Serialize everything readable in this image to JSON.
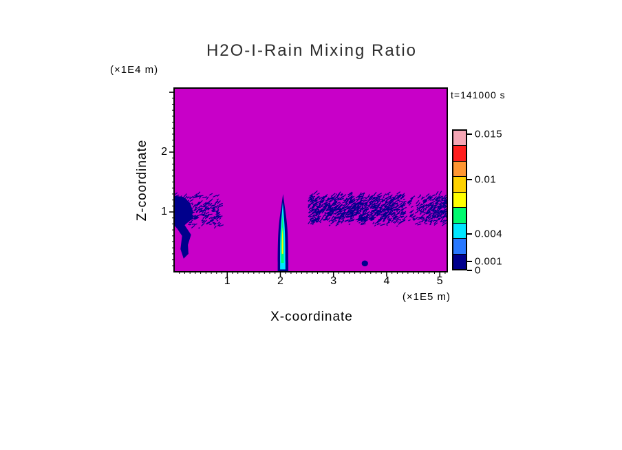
{
  "chart_data": {
    "type": "heatmap",
    "title": "H2O-I-Rain Mixing Ratio",
    "xlabel": "X-coordinate",
    "ylabel": "Z-coordinate",
    "x_unit": "(×1E5 m)",
    "z_unit": "(×1E4 m)",
    "timestamp": "t=141000 s",
    "xlim": [
      0,
      5.14
    ],
    "zlim": [
      0,
      3.07
    ],
    "x_ticks": [
      1,
      2,
      3,
      4,
      5
    ],
    "z_ticks": [
      1,
      2
    ],
    "minor_tick_step": 0.1,
    "background_value_color": "#C800C8",
    "feature_color": "#00008C",
    "colorbar": {
      "range": [
        0,
        0.0155
      ],
      "labels": [
        "0.015",
        "0.01",
        "0.004",
        "0.001",
        "0"
      ],
      "label_values": [
        0.015,
        0.01,
        0.004,
        0.001,
        0
      ],
      "segment_colors_bottom_to_top": [
        "#00008C",
        "#2878FF",
        "#00E6FF",
        "#00FA6E",
        "#FFFF00",
        "#FFD200",
        "#FF9632",
        "#FF1E1E",
        "#F5A5B4"
      ]
    },
    "features": [
      {
        "type": "speckle",
        "name": "left-cloud-speckle",
        "x": [
          0.0,
          0.85
        ],
        "z": [
          0.72,
          1.3
        ],
        "count": 420,
        "len": [
          2,
          7
        ],
        "angle": -30,
        "color": "#00008C"
      },
      {
        "type": "polygon",
        "name": "left-cloud-core",
        "color": "#00008C",
        "points": [
          [
            0,
            1.27
          ],
          [
            0.18,
            1.25
          ],
          [
            0.3,
            1.15
          ],
          [
            0.36,
            1.0
          ],
          [
            0.3,
            0.86
          ],
          [
            0.2,
            0.78
          ],
          [
            0.32,
            0.62
          ],
          [
            0.26,
            0.45
          ],
          [
            0.27,
            0.3
          ],
          [
            0.18,
            0.22
          ],
          [
            0.12,
            0.38
          ],
          [
            0.15,
            0.6
          ],
          [
            0.06,
            0.72
          ],
          [
            0,
            0.78
          ]
        ]
      },
      {
        "type": "speckle",
        "name": "right-band-speckle",
        "x": [
          2.52,
          5.12
        ],
        "z": [
          0.76,
          1.3
        ],
        "count": 1700,
        "len": [
          2,
          8
        ],
        "angle": -35,
        "gap": [
          4.32,
          4.62
        ],
        "color": "#00008C"
      },
      {
        "type": "plume",
        "name": "plume-outer",
        "cx": 2.05,
        "half_width": 0.1,
        "base_z": 0.0,
        "tip_z": 1.3,
        "color": "#00008C"
      },
      {
        "type": "plume",
        "name": "plume-cyan",
        "cx": 2.045,
        "half_width": 0.05,
        "base_z": 0.04,
        "tip_z": 1.16,
        "color": "#00E6FF"
      },
      {
        "type": "plume",
        "name": "plume-green",
        "cx": 2.04,
        "half_width": 0.026,
        "base_z": 0.15,
        "tip_z": 0.98,
        "color": "#00FA6E"
      },
      {
        "type": "plume",
        "name": "plume-yellow",
        "cx": 2.04,
        "half_width": 0.012,
        "base_z": 0.3,
        "tip_z": 0.75,
        "color": "#FFFF00"
      },
      {
        "type": "ellipse",
        "name": "small-speck",
        "cx": 3.59,
        "cz": 0.14,
        "rx": 0.06,
        "rz": 0.05,
        "color": "#00008C"
      }
    ]
  }
}
